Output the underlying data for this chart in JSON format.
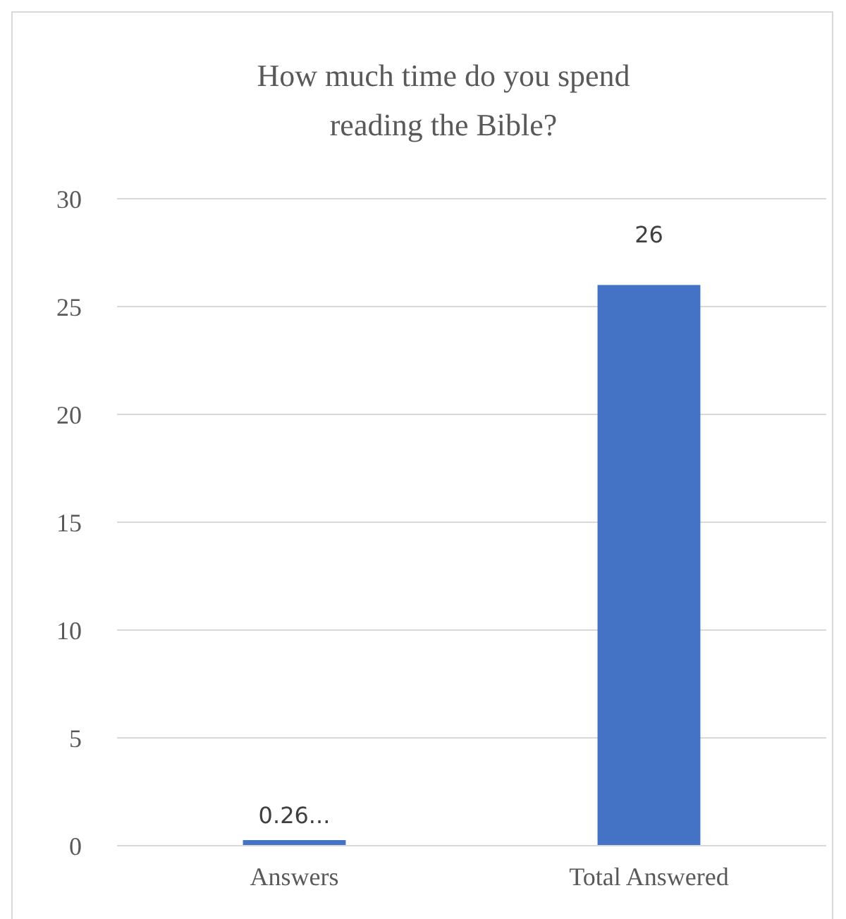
{
  "chart_data": {
    "type": "bar",
    "title": "How much time do you spend reading the Bible?",
    "categories": [
      "Answers",
      "Total Answered"
    ],
    "values": [
      0.26,
      26
    ],
    "color": "#4472c4",
    "value_labels": [
      "0.26...",
      "26"
    ],
    "ylim": [
      0,
      30
    ],
    "yticks": [
      0,
      5,
      10,
      15,
      20,
      25,
      30
    ],
    "grid": "y"
  }
}
